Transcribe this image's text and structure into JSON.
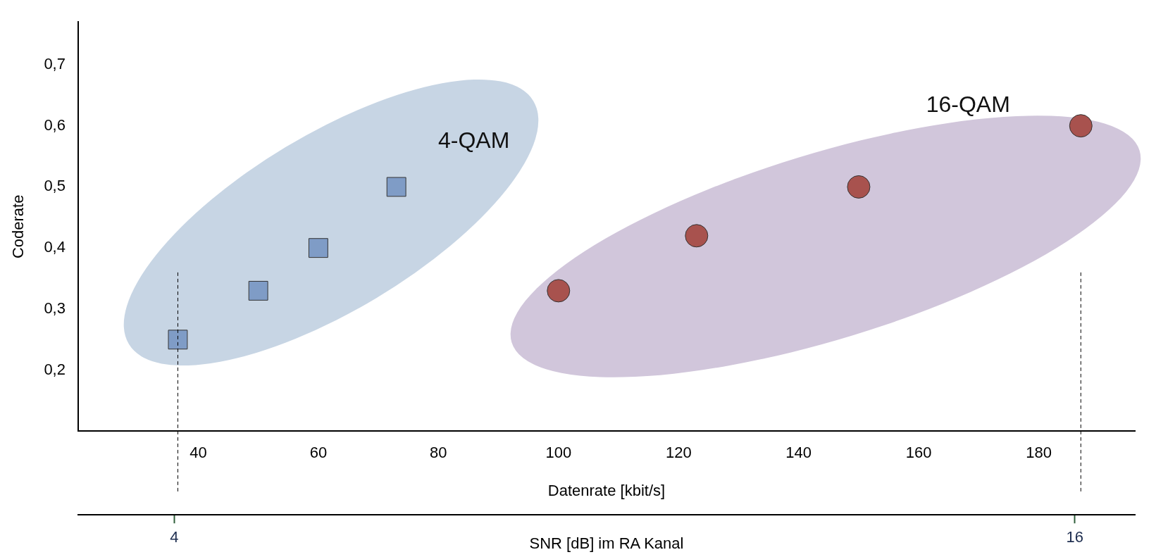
{
  "chart_data": {
    "type": "scatter",
    "xlabel": "Datenrate [kbit/s]",
    "ylabel": "Coderate",
    "x2label": "SNR [dB] im RA Kanal",
    "series": [
      {
        "name": "4-QAM",
        "color": "#7f9cc6",
        "marker": "square",
        "x": [
          36.6,
          50,
          60,
          73
        ],
        "values": [
          0.25,
          0.33,
          0.4,
          0.5
        ]
      },
      {
        "name": "16-QAM",
        "color": "#a8524e",
        "marker": "circle",
        "x": [
          100,
          123,
          150,
          187
        ],
        "values": [
          0.33,
          0.42,
          0.5,
          0.6
        ]
      }
    ],
    "xlim": [
      20,
      196
    ],
    "xticks": [
      40,
      60,
      80,
      100,
      120,
      140,
      160,
      180
    ],
    "ylim": [
      0.1,
      0.77
    ],
    "yticks": [
      {
        "value": 0.2,
        "label": "0,2"
      },
      {
        "value": 0.3,
        "label": "0,3"
      },
      {
        "value": 0.4,
        "label": "0,4"
      },
      {
        "value": 0.5,
        "label": "0,5"
      },
      {
        "value": 0.6,
        "label": "0,6"
      },
      {
        "value": 0.7,
        "label": "0,7"
      }
    ],
    "x2lim": [
      2.72,
      16.8
    ],
    "x2ticks": [
      4,
      16
    ],
    "ref_lines": [
      {
        "axis": "x",
        "value": 36.6,
        "line_style": "dashed",
        "color": "#000000"
      },
      {
        "axis": "x",
        "value": 187,
        "line_style": "dashed",
        "color": "#000000"
      }
    ],
    "grid": false,
    "legend": false
  }
}
